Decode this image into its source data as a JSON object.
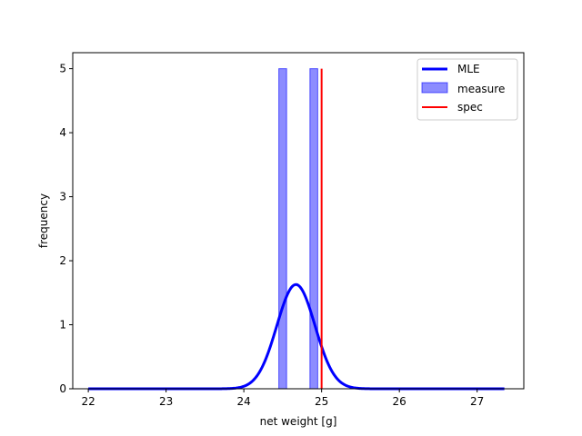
{
  "chart_data": {
    "type": "histogram-with-curve",
    "title": "",
    "xlabel": "net weight [g]",
    "ylabel": "frequency",
    "xlim": [
      21.8,
      27.6
    ],
    "ylim": [
      0,
      5.25
    ],
    "xticks": [
      22,
      23,
      24,
      25,
      26,
      27
    ],
    "yticks": [
      0,
      1,
      2,
      3,
      4,
      5
    ],
    "grid": false,
    "legend": {
      "position": "upper right",
      "entries": [
        "MLE",
        "measure",
        "spec"
      ]
    },
    "histogram": {
      "name": "measure",
      "color": "#0000ff",
      "alpha": 0.45,
      "bins": [
        {
          "x0": 24.45,
          "x1": 24.55,
          "count": 5
        },
        {
          "x0": 24.85,
          "x1": 24.95,
          "count": 5
        }
      ]
    },
    "curve": {
      "name": "MLE",
      "color": "#0000ff",
      "kind": "normal-pdf",
      "mean": 24.67,
      "std": 0.245,
      "x_range": [
        22.0,
        27.35
      ]
    },
    "spec_line": {
      "name": "spec",
      "color": "#ff0000",
      "x": 25.0,
      "y_range": [
        0,
        5
      ]
    }
  }
}
